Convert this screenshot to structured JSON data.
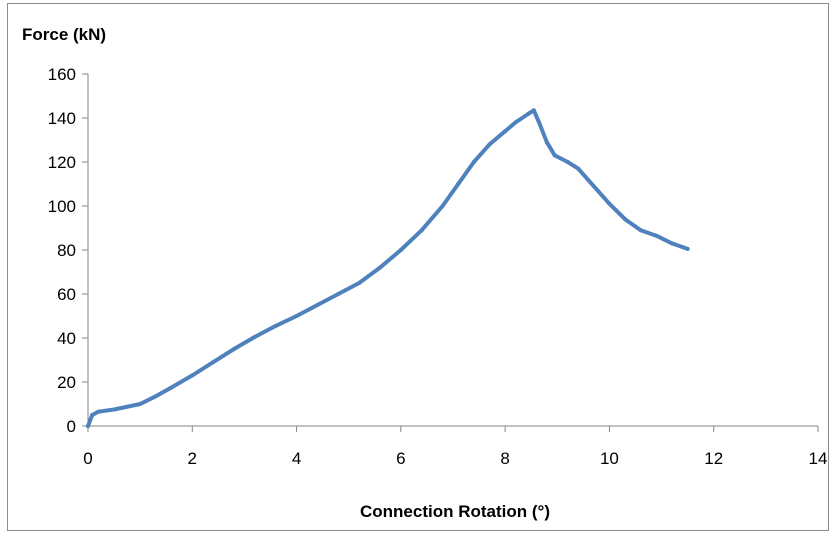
{
  "chart_data": {
    "type": "line",
    "title": "",
    "xlabel": "Connection Rotation (°)",
    "ylabel": "Force (kN)",
    "xlim": [
      0,
      14
    ],
    "ylim": [
      0,
      160
    ],
    "x_ticks": [
      0,
      2,
      4,
      6,
      8,
      10,
      12,
      14
    ],
    "y_ticks": [
      0,
      20,
      40,
      60,
      80,
      100,
      120,
      140,
      160
    ],
    "grid": false,
    "legend": "none",
    "series": [
      {
        "color": "#4f81bd",
        "x": [
          0,
          0.08,
          0.2,
          0.5,
          1.0,
          1.3,
          1.6,
          2.0,
          2.4,
          2.8,
          3.2,
          3.6,
          4.0,
          4.4,
          4.8,
          5.2,
          5.6,
          6.0,
          6.4,
          6.8,
          7.1,
          7.4,
          7.7,
          8.0,
          8.2,
          8.45,
          8.55,
          8.65,
          8.8,
          8.95,
          9.2,
          9.4,
          9.7,
          10.0,
          10.3,
          10.6,
          10.9,
          11.2,
          11.5
        ],
        "y": [
          0,
          5,
          6.5,
          7.5,
          10,
          13.5,
          17.5,
          23,
          29,
          35,
          40.5,
          45.5,
          50,
          55,
          60,
          65,
          72,
          80,
          89,
          100,
          110,
          120,
          128,
          134,
          138,
          142,
          143.5,
          138,
          129,
          123,
          120,
          117,
          109,
          101,
          94,
          89,
          86.5,
          83,
          80.5
        ]
      }
    ]
  }
}
